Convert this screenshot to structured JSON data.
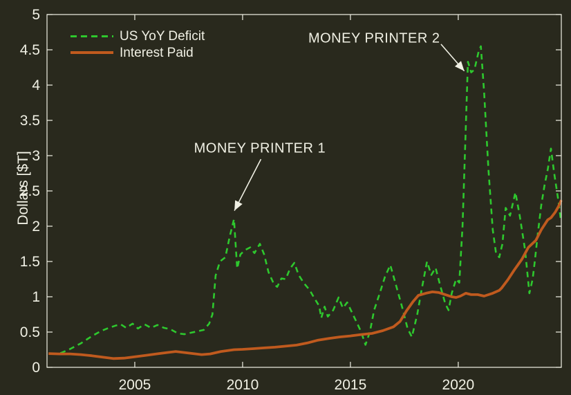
{
  "figure": {
    "background": "#29291d",
    "axis_color": "#f2f2e6",
    "text_color": "#f0f0e4"
  },
  "chart_data": {
    "type": "line",
    "title": "",
    "xlabel": "",
    "ylabel": "Dollars [$T]",
    "xlim": [
      2000.93,
      2024.78
    ],
    "ylim": [
      0,
      5
    ],
    "grid": false,
    "legend_position": "top-left",
    "xticks": [
      2005,
      2010,
      2015,
      2020
    ],
    "xtick_labels": [
      "2005",
      "2010",
      "2015",
      "2020"
    ],
    "yticks": [
      0,
      0.5,
      1,
      1.5,
      2,
      2.5,
      3,
      3.5,
      4,
      4.5,
      5
    ],
    "ytick_labels": [
      "0",
      "0.5",
      "1",
      "1.5",
      "2",
      "2.5",
      "3",
      "3.5",
      "4",
      "4.5",
      "5"
    ],
    "series": [
      {
        "name": "US YoY Deficit",
        "color": "#2ec82e",
        "line_style": "dashed",
        "points": [
          [
            2001.55,
            0.2
          ],
          [
            2002.0,
            0.26
          ],
          [
            2002.5,
            0.34
          ],
          [
            2003.0,
            0.44
          ],
          [
            2003.4,
            0.51
          ],
          [
            2003.8,
            0.56
          ],
          [
            2004.1,
            0.59
          ],
          [
            2004.35,
            0.61
          ],
          [
            2004.6,
            0.56
          ],
          [
            2004.9,
            0.62
          ],
          [
            2005.15,
            0.55
          ],
          [
            2005.45,
            0.61
          ],
          [
            2005.75,
            0.56
          ],
          [
            2006.05,
            0.6
          ],
          [
            2006.35,
            0.56
          ],
          [
            2006.65,
            0.54
          ],
          [
            2007.0,
            0.48
          ],
          [
            2007.3,
            0.47
          ],
          [
            2007.6,
            0.49
          ],
          [
            2007.9,
            0.51
          ],
          [
            2008.2,
            0.53
          ],
          [
            2008.45,
            0.62
          ],
          [
            2008.6,
            0.75
          ],
          [
            2008.75,
            1.3
          ],
          [
            2008.95,
            1.5
          ],
          [
            2009.2,
            1.56
          ],
          [
            2009.4,
            1.85
          ],
          [
            2009.6,
            2.1
          ],
          [
            2009.75,
            1.4
          ],
          [
            2009.9,
            1.6
          ],
          [
            2010.1,
            1.66
          ],
          [
            2010.35,
            1.7
          ],
          [
            2010.55,
            1.62
          ],
          [
            2010.8,
            1.75
          ],
          [
            2011.0,
            1.6
          ],
          [
            2011.2,
            1.35
          ],
          [
            2011.45,
            1.18
          ],
          [
            2011.6,
            1.14
          ],
          [
            2011.8,
            1.26
          ],
          [
            2012.0,
            1.25
          ],
          [
            2012.2,
            1.4
          ],
          [
            2012.4,
            1.48
          ],
          [
            2012.6,
            1.31
          ],
          [
            2012.85,
            1.19
          ],
          [
            2013.1,
            1.1
          ],
          [
            2013.35,
            0.97
          ],
          [
            2013.55,
            0.87
          ],
          [
            2013.65,
            0.7
          ],
          [
            2013.8,
            0.86
          ],
          [
            2013.95,
            0.72
          ],
          [
            2014.2,
            0.81
          ],
          [
            2014.45,
            0.99
          ],
          [
            2014.65,
            0.84
          ],
          [
            2014.85,
            0.92
          ],
          [
            2015.1,
            0.76
          ],
          [
            2015.35,
            0.6
          ],
          [
            2015.5,
            0.5
          ],
          [
            2015.7,
            0.32
          ],
          [
            2015.9,
            0.5
          ],
          [
            2016.1,
            0.81
          ],
          [
            2016.35,
            1.04
          ],
          [
            2016.6,
            1.28
          ],
          [
            2016.85,
            1.45
          ],
          [
            2017.1,
            1.18
          ],
          [
            2017.4,
            0.85
          ],
          [
            2017.65,
            0.55
          ],
          [
            2017.85,
            0.43
          ],
          [
            2018.1,
            0.75
          ],
          [
            2018.3,
            1.1
          ],
          [
            2018.55,
            1.5
          ],
          [
            2018.75,
            1.31
          ],
          [
            2018.95,
            1.41
          ],
          [
            2019.2,
            1.12
          ],
          [
            2019.4,
            0.9
          ],
          [
            2019.55,
            0.81
          ],
          [
            2019.7,
            1.05
          ],
          [
            2019.9,
            1.25
          ],
          [
            2020.05,
            1.2
          ],
          [
            2020.2,
            2.0
          ],
          [
            2020.35,
            3.4
          ],
          [
            2020.45,
            4.33
          ],
          [
            2020.6,
            4.18
          ],
          [
            2020.75,
            4.22
          ],
          [
            2020.95,
            4.48
          ],
          [
            2021.05,
            4.55
          ],
          [
            2021.2,
            3.9
          ],
          [
            2021.4,
            2.8
          ],
          [
            2021.6,
            1.95
          ],
          [
            2021.75,
            1.62
          ],
          [
            2021.9,
            1.56
          ],
          [
            2022.05,
            1.75
          ],
          [
            2022.2,
            2.26
          ],
          [
            2022.4,
            2.15
          ],
          [
            2022.65,
            2.48
          ],
          [
            2022.85,
            2.15
          ],
          [
            2023.1,
            1.66
          ],
          [
            2023.3,
            1.05
          ],
          [
            2023.45,
            1.25
          ],
          [
            2023.55,
            1.5
          ],
          [
            2023.7,
            1.92
          ],
          [
            2023.85,
            2.3
          ],
          [
            2024.0,
            2.58
          ],
          [
            2024.15,
            2.8
          ],
          [
            2024.3,
            3.1
          ],
          [
            2024.45,
            2.75
          ],
          [
            2024.55,
            2.55
          ],
          [
            2024.65,
            2.35
          ],
          [
            2024.75,
            2.1
          ]
        ]
      },
      {
        "name": "Interest Paid",
        "color": "#c05a1e",
        "line_style": "solid",
        "points": [
          [
            2001.0,
            0.195
          ],
          [
            2001.5,
            0.19
          ],
          [
            2002.0,
            0.19
          ],
          [
            2002.5,
            0.18
          ],
          [
            2003.0,
            0.165
          ],
          [
            2003.5,
            0.145
          ],
          [
            2004.0,
            0.125
          ],
          [
            2004.5,
            0.13
          ],
          [
            2005.0,
            0.15
          ],
          [
            2005.5,
            0.17
          ],
          [
            2006.0,
            0.19
          ],
          [
            2006.5,
            0.21
          ],
          [
            2006.9,
            0.225
          ],
          [
            2007.3,
            0.21
          ],
          [
            2007.7,
            0.195
          ],
          [
            2008.1,
            0.18
          ],
          [
            2008.5,
            0.19
          ],
          [
            2009.0,
            0.225
          ],
          [
            2009.6,
            0.25
          ],
          [
            2010.0,
            0.255
          ],
          [
            2010.5,
            0.265
          ],
          [
            2011.0,
            0.275
          ],
          [
            2011.5,
            0.285
          ],
          [
            2012.0,
            0.3
          ],
          [
            2012.5,
            0.315
          ],
          [
            2013.0,
            0.345
          ],
          [
            2013.5,
            0.385
          ],
          [
            2014.0,
            0.41
          ],
          [
            2014.5,
            0.43
          ],
          [
            2015.0,
            0.445
          ],
          [
            2015.5,
            0.465
          ],
          [
            2016.0,
            0.48
          ],
          [
            2016.5,
            0.52
          ],
          [
            2017.0,
            0.575
          ],
          [
            2017.3,
            0.65
          ],
          [
            2017.6,
            0.8
          ],
          [
            2017.9,
            0.93
          ],
          [
            2018.15,
            1.02
          ],
          [
            2018.5,
            1.05
          ],
          [
            2018.8,
            1.07
          ],
          [
            2019.1,
            1.06
          ],
          [
            2019.4,
            1.03
          ],
          [
            2019.7,
            1.0
          ],
          [
            2019.9,
            0.99
          ],
          [
            2020.1,
            1.01
          ],
          [
            2020.35,
            1.05
          ],
          [
            2020.6,
            1.03
          ],
          [
            2020.9,
            1.03
          ],
          [
            2021.2,
            1.01
          ],
          [
            2021.6,
            1.05
          ],
          [
            2021.9,
            1.09
          ],
          [
            2022.0,
            1.12
          ],
          [
            2022.3,
            1.24
          ],
          [
            2022.6,
            1.38
          ],
          [
            2022.95,
            1.53
          ],
          [
            2023.25,
            1.7
          ],
          [
            2023.6,
            1.8
          ],
          [
            2023.85,
            1.95
          ],
          [
            2024.15,
            2.09
          ],
          [
            2024.3,
            2.12
          ],
          [
            2024.5,
            2.2
          ],
          [
            2024.65,
            2.28
          ],
          [
            2024.78,
            2.37
          ]
        ]
      }
    ],
    "annotations": [
      {
        "text": "MONEY PRINTER 1",
        "text_at": [
          2010.8,
          3.1
        ],
        "arrow_from": [
          2010.85,
          2.95
        ],
        "arrow_to": [
          2009.62,
          2.22
        ]
      },
      {
        "text": "MONEY PRINTER 2",
        "text_at": [
          2016.1,
          4.66
        ],
        "arrow_from": [
          2019.2,
          4.58
        ],
        "arrow_to": [
          2020.28,
          4.2
        ]
      }
    ]
  }
}
